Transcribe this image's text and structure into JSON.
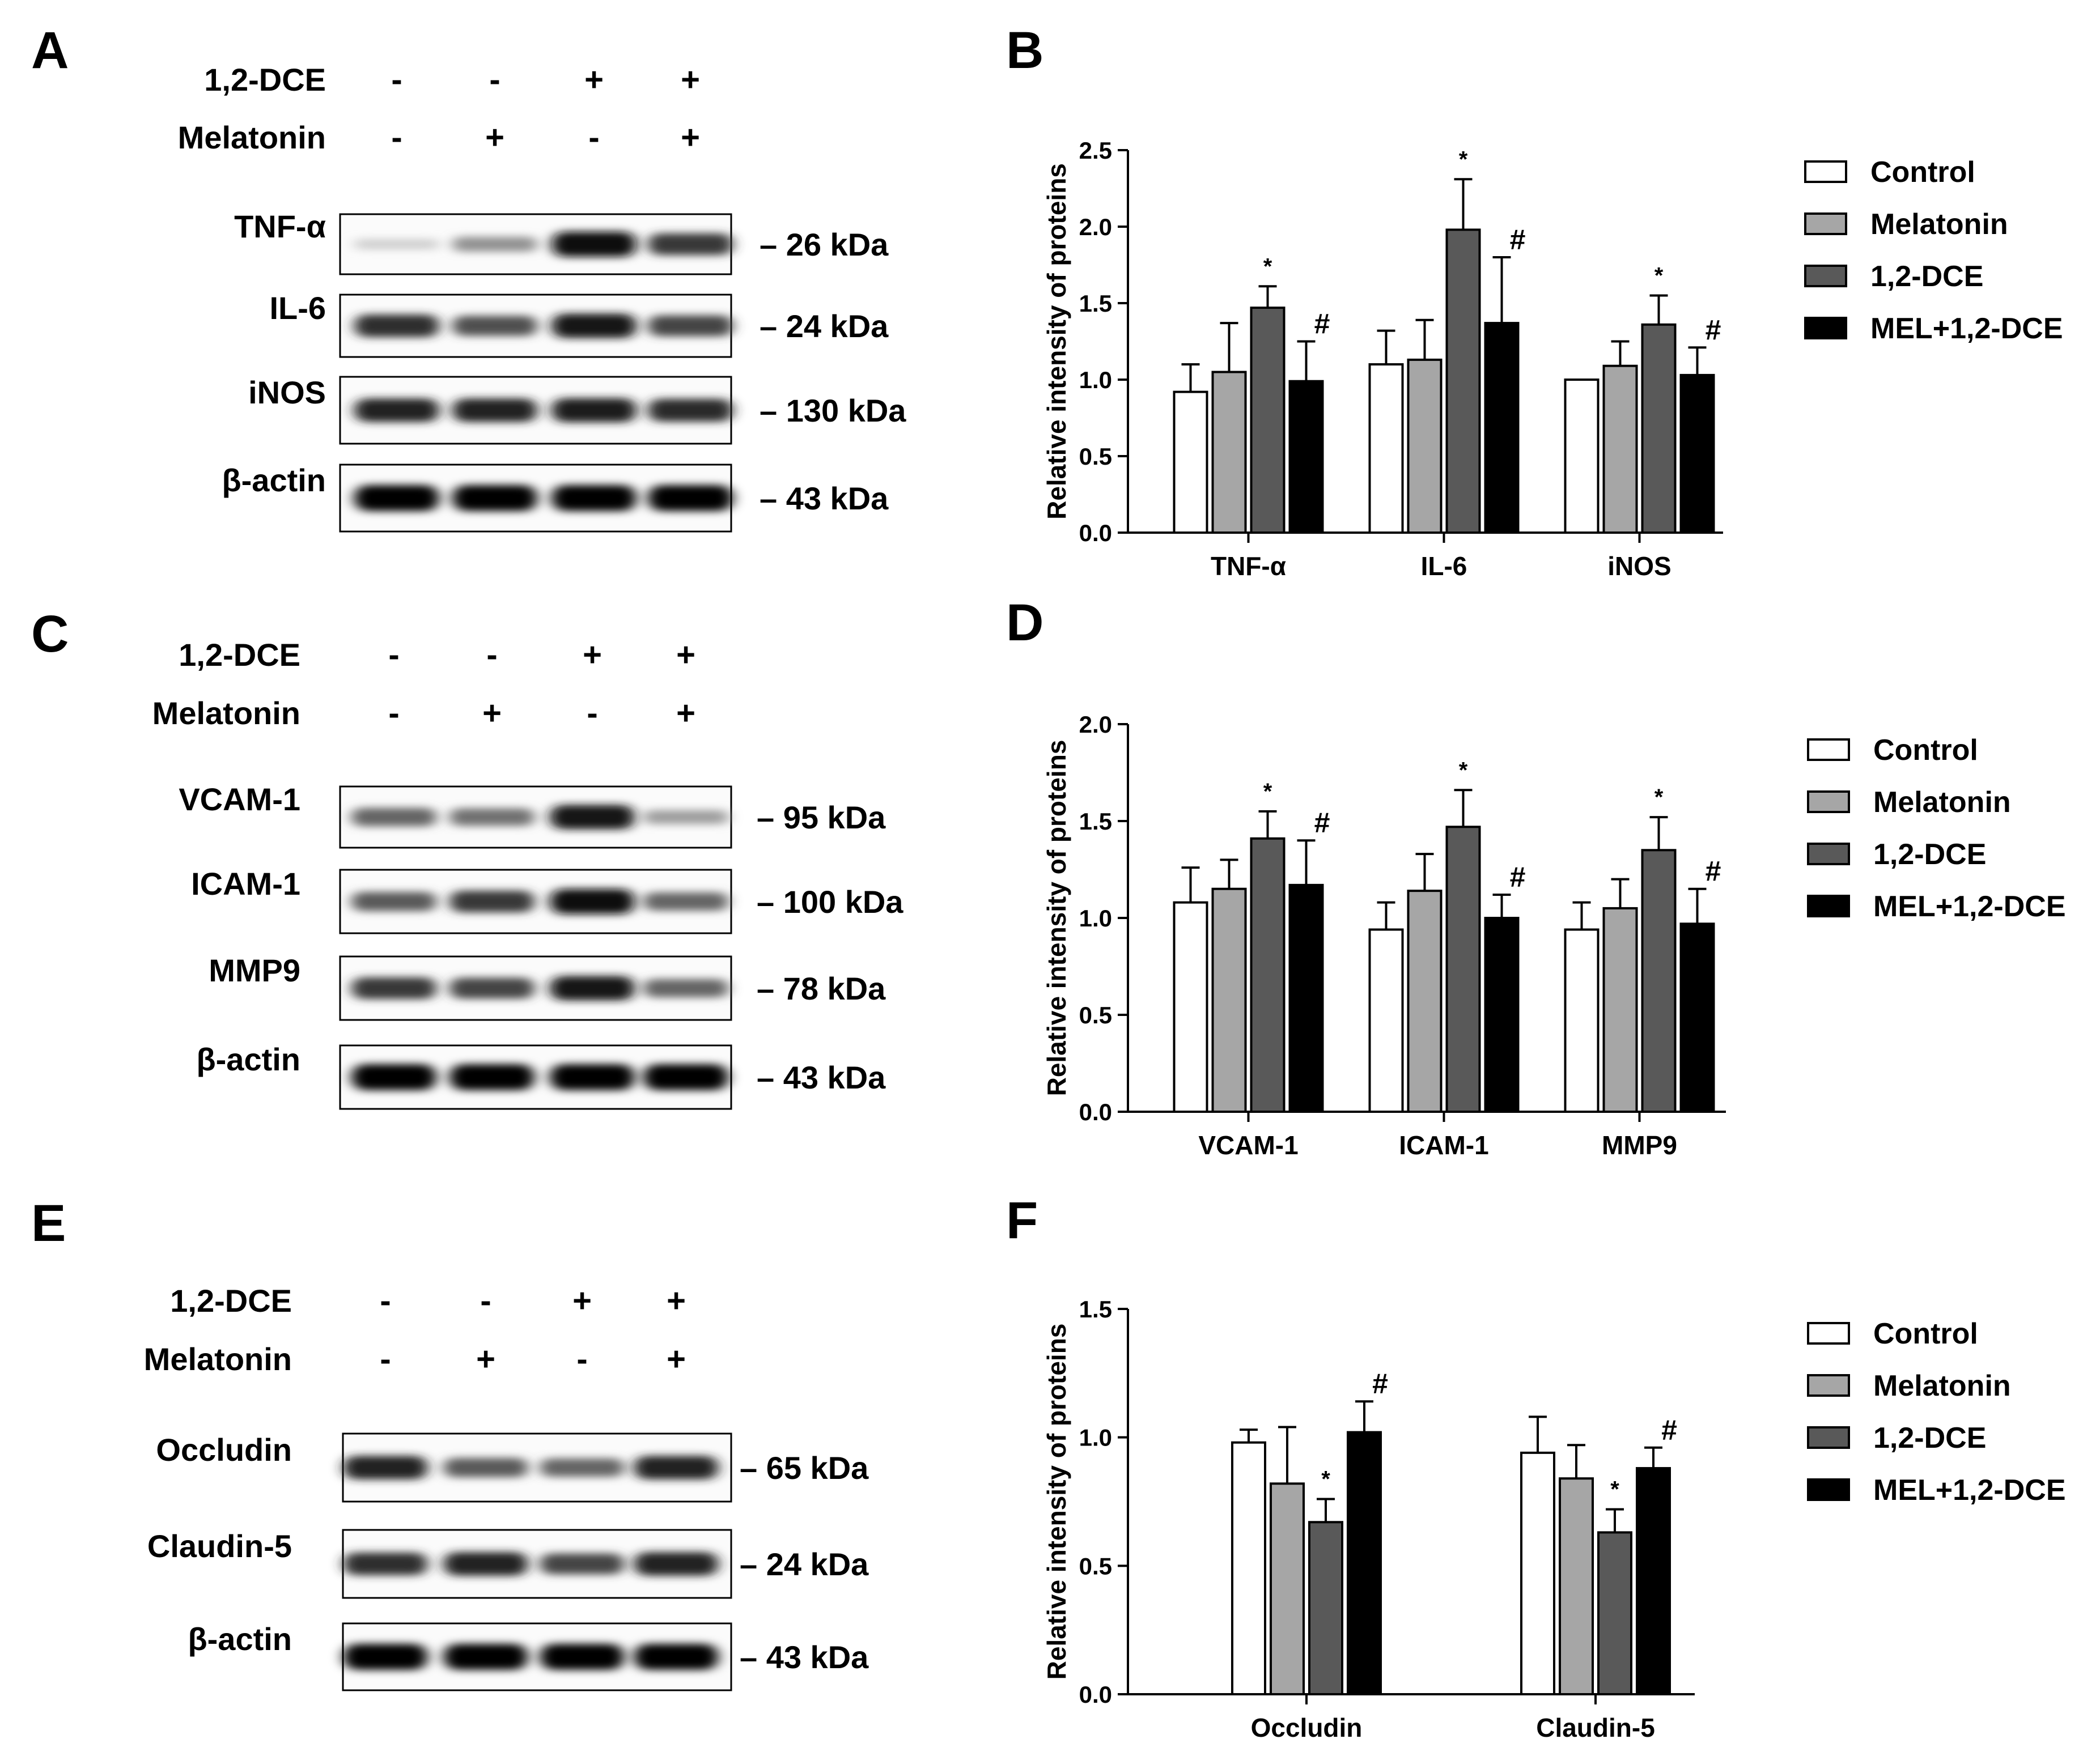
{
  "blots": [
    {
      "letter": "A",
      "treatments": [
        {
          "name": "1,2-DCE",
          "signs": [
            "-",
            "-",
            "+",
            "+"
          ]
        },
        {
          "name": "Melatonin",
          "signs": [
            "-",
            "+",
            "-",
            "+"
          ]
        }
      ],
      "proteins": [
        {
          "name": "TNF-α",
          "kda": "– 26 kDa",
          "intensity": [
            0.08,
            0.35,
            0.95,
            0.75
          ]
        },
        {
          "name": "IL-6",
          "kda": "– 24 kDa",
          "intensity": [
            0.8,
            0.65,
            0.9,
            0.7
          ]
        },
        {
          "name": "iNOS",
          "kda": "– 130 kDa",
          "intensity": [
            0.85,
            0.85,
            0.88,
            0.82
          ]
        },
        {
          "name": "β-actin",
          "kda": "– 43 kDa",
          "intensity": [
            1.0,
            1.0,
            1.0,
            1.0
          ]
        }
      ]
    },
    {
      "letter": "C",
      "treatments": [
        {
          "name": "1,2-DCE",
          "signs": [
            "-",
            "-",
            "+",
            "+"
          ]
        },
        {
          "name": "Melatonin",
          "signs": [
            "-",
            "+",
            "-",
            "+"
          ]
        }
      ],
      "proteins": [
        {
          "name": "VCAM-1",
          "kda": "– 95 kDa",
          "intensity": [
            0.55,
            0.5,
            0.9,
            0.3
          ]
        },
        {
          "name": "ICAM-1",
          "kda": "– 100 kDa",
          "intensity": [
            0.6,
            0.75,
            0.95,
            0.55
          ]
        },
        {
          "name": "MMP9",
          "kda": "– 78 kDa",
          "intensity": [
            0.75,
            0.7,
            0.9,
            0.55
          ]
        },
        {
          "name": "β-actin",
          "kda": "– 43 kDa",
          "intensity": [
            1.0,
            1.0,
            1.0,
            1.0
          ]
        }
      ]
    },
    {
      "letter": "E",
      "treatments": [
        {
          "name": "1,2-DCE",
          "signs": [
            "-",
            "-",
            "+",
            "+"
          ]
        },
        {
          "name": "Melatonin",
          "signs": [
            "-",
            "+",
            "-",
            "+"
          ]
        }
      ],
      "proteins": [
        {
          "name": "Occludin",
          "kda": "– 65 kDa",
          "intensity": [
            0.85,
            0.6,
            0.55,
            0.85
          ]
        },
        {
          "name": "Claudin-5",
          "kda": "– 24 kDa",
          "intensity": [
            0.8,
            0.85,
            0.7,
            0.85
          ]
        },
        {
          "name": "β-actin",
          "kda": "– 43 kDa",
          "intensity": [
            1.0,
            1.0,
            1.0,
            1.0
          ]
        }
      ]
    }
  ],
  "chart_data": [
    {
      "letter": "B",
      "type": "bar",
      "categories": [
        "TNF-α",
        "IL-6",
        "iNOS"
      ],
      "ylabel": "Relative intensity of proteins",
      "ylim": [
        0,
        2.5
      ],
      "yticks": [
        "0.0",
        "0.5",
        "1.0",
        "1.5",
        "2.0",
        "2.5"
      ],
      "legend_position": "right",
      "series": [
        {
          "name": "Control",
          "color": "#ffffff",
          "values": [
            0.92,
            1.1,
            1.0
          ],
          "errors": [
            0.18,
            0.22,
            0.0
          ],
          "marks": [
            "",
            "",
            ""
          ]
        },
        {
          "name": "Melatonin",
          "color": "#a6a6a6",
          "values": [
            1.05,
            1.13,
            1.09
          ],
          "errors": [
            0.32,
            0.26,
            0.16
          ],
          "marks": [
            "",
            "",
            ""
          ]
        },
        {
          "name": "1,2-DCE",
          "color": "#595959",
          "values": [
            1.47,
            1.98,
            1.36
          ],
          "errors": [
            0.14,
            0.33,
            0.19
          ],
          "marks": [
            "*",
            "*",
            "*"
          ]
        },
        {
          "name": "MEL+1,2-DCE",
          "color": "#000000",
          "values": [
            0.99,
            1.37,
            1.03
          ],
          "errors": [
            0.26,
            0.43,
            0.18
          ],
          "marks": [
            "#",
            "#",
            "#"
          ]
        }
      ]
    },
    {
      "letter": "D",
      "type": "bar",
      "categories": [
        "VCAM-1",
        "ICAM-1",
        "MMP9"
      ],
      "ylabel": "Relative intensity of proteins",
      "ylim": [
        0,
        2.0
      ],
      "yticks": [
        "0.0",
        "0.5",
        "1.0",
        "1.5",
        "2.0"
      ],
      "legend_position": "right",
      "series": [
        {
          "name": "Control",
          "color": "#ffffff",
          "values": [
            1.08,
            0.94,
            0.94
          ],
          "errors": [
            0.18,
            0.14,
            0.14
          ],
          "marks": [
            "",
            "",
            ""
          ]
        },
        {
          "name": "Melatonin",
          "color": "#a6a6a6",
          "values": [
            1.15,
            1.14,
            1.05
          ],
          "errors": [
            0.15,
            0.19,
            0.15
          ],
          "marks": [
            "",
            "",
            ""
          ]
        },
        {
          "name": "1,2-DCE",
          "color": "#595959",
          "values": [
            1.41,
            1.47,
            1.35
          ],
          "errors": [
            0.14,
            0.19,
            0.17
          ],
          "marks": [
            "*",
            "*",
            "*"
          ]
        },
        {
          "name": "MEL+1,2-DCE",
          "color": "#000000",
          "values": [
            1.17,
            1.0,
            0.97
          ],
          "errors": [
            0.23,
            0.12,
            0.18
          ],
          "marks": [
            "#",
            "#",
            "#"
          ]
        }
      ]
    },
    {
      "letter": "F",
      "type": "bar",
      "categories": [
        "Occludin",
        "Claudin-5"
      ],
      "ylabel": "Relative intensity of proteins",
      "ylim": [
        0,
        1.5
      ],
      "yticks": [
        "0.0",
        "0.5",
        "1.0",
        "1.5"
      ],
      "legend_position": "right",
      "series": [
        {
          "name": "Control",
          "color": "#ffffff",
          "values": [
            0.98,
            0.94
          ],
          "errors": [
            0.05,
            0.14
          ],
          "marks": [
            "",
            ""
          ]
        },
        {
          "name": "Melatonin",
          "color": "#a6a6a6",
          "values": [
            0.82,
            0.84
          ],
          "errors": [
            0.22,
            0.13
          ],
          "marks": [
            "",
            ""
          ]
        },
        {
          "name": "1,2-DCE",
          "color": "#595959",
          "values": [
            0.67,
            0.63
          ],
          "errors": [
            0.09,
            0.09
          ],
          "marks": [
            "*",
            "*"
          ]
        },
        {
          "name": "MEL+1,2-DCE",
          "color": "#000000",
          "values": [
            1.02,
            0.88
          ],
          "errors": [
            0.12,
            0.08
          ],
          "marks": [
            "#",
            "#"
          ]
        }
      ]
    }
  ]
}
